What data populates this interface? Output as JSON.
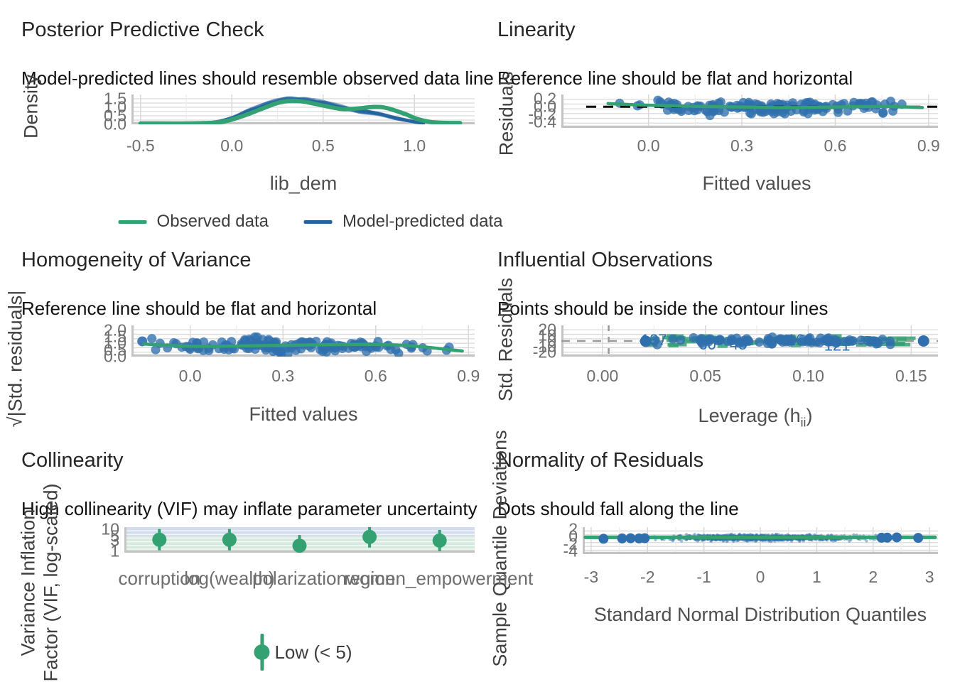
{
  "colors": {
    "green": "#33a172",
    "blue_line": "#24639f",
    "blue_point": "#2f6fad",
    "band_low": "#cfe6d9",
    "band_mod": "#ccd7e8",
    "grid": "#d9d9d9",
    "axis": "#c4c4c4",
    "gray_dash": "#9a9a9a",
    "ref_black": "#000000",
    "label_blue": "#2f6fad"
  },
  "chart_data": [
    {
      "id": "ppc",
      "type": "line",
      "title": "Posterior Predictive Check",
      "subtitle": "Model-predicted lines should resemble observed data line",
      "xlabel": "lib_dem",
      "ylabel": "Density",
      "xlim": [
        -0.55,
        1.33
      ],
      "ylim": [
        0,
        1.75
      ],
      "xticks": [
        {
          "v": -0.5,
          "l": "-0.5"
        },
        {
          "v": 0.0,
          "l": "0.0"
        },
        {
          "v": 0.5,
          "l": "0.5"
        },
        {
          "v": 1.0,
          "l": "1.0"
        }
      ],
      "yticks": [
        {
          "v": 1.5,
          "l": "1.5"
        },
        {
          "v": 1.0,
          "l": "1.0"
        },
        {
          "v": 0.5,
          "l": "0.5"
        },
        {
          "v": 0.0,
          "l": "0.0"
        }
      ],
      "legend": [
        {
          "label": "Observed data",
          "color": "green"
        },
        {
          "label": "Model-predicted data",
          "color": "blue_line"
        }
      ],
      "observed": [
        [
          -0.5,
          0.05
        ],
        [
          -0.4,
          0.05
        ],
        [
          -0.25,
          0.05
        ],
        [
          -0.15,
          0.07
        ],
        [
          -0.05,
          0.15
        ],
        [
          0.05,
          0.45
        ],
        [
          0.15,
          0.85
        ],
        [
          0.25,
          1.25
        ],
        [
          0.33,
          1.38
        ],
        [
          0.4,
          1.32
        ],
        [
          0.5,
          1.1
        ],
        [
          0.6,
          0.9
        ],
        [
          0.68,
          0.92
        ],
        [
          0.78,
          1.02
        ],
        [
          0.85,
          0.95
        ],
        [
          0.95,
          0.6
        ],
        [
          1.02,
          0.3
        ],
        [
          1.1,
          0.12
        ],
        [
          1.2,
          0.08
        ],
        [
          1.25,
          0.08
        ]
      ],
      "predicted_base": [
        [
          -0.2,
          0.02
        ],
        [
          -0.1,
          0.1
        ],
        [
          0,
          0.35
        ],
        [
          0.1,
          0.8
        ],
        [
          0.2,
          1.2
        ],
        [
          0.3,
          1.45
        ],
        [
          0.4,
          1.42
        ],
        [
          0.5,
          1.25
        ],
        [
          0.6,
          1.0
        ],
        [
          0.7,
          0.8
        ],
        [
          0.8,
          0.6
        ],
        [
          0.9,
          0.35
        ],
        [
          1.0,
          0.15
        ],
        [
          1.05,
          0.06
        ]
      ],
      "n_sim": 9,
      "seed": 3
    },
    {
      "id": "linearity",
      "type": "scatter",
      "title": "Linearity",
      "subtitle": "Reference line should be flat and horizontal",
      "xlabel": "Fitted values",
      "ylabel": "Residuals",
      "xlim": [
        -0.28,
        0.93
      ],
      "ylim": [
        -0.55,
        0.32
      ],
      "xticks": [
        {
          "v": 0.0,
          "l": "0.0"
        },
        {
          "v": 0.3,
          "l": "0.3"
        },
        {
          "v": 0.6,
          "l": "0.6"
        },
        {
          "v": 0.9,
          "l": "0.9"
        }
      ],
      "yticks": [
        {
          "v": 0.2,
          "l": "0.2"
        },
        {
          "v": 0.0,
          "l": "0.0"
        },
        {
          "v": -0.2,
          "l": "-0.2"
        },
        {
          "v": -0.4,
          "l": "-0.4"
        }
      ],
      "refline": 0,
      "smooth": [
        [
          -0.13,
          0.085
        ],
        [
          0,
          0.04
        ],
        [
          0.15,
          0.01
        ],
        [
          0.3,
          -0.005
        ],
        [
          0.45,
          -0.02
        ],
        [
          0.6,
          -0.005
        ],
        [
          0.75,
          0.01
        ],
        [
          0.88,
          -0.02
        ]
      ],
      "cloud": {
        "n": 150,
        "seed": 7,
        "xmin": -0.13,
        "xmax": 0.88,
        "ysd": 0.16,
        "ymin": -0.42,
        "ymax": 0.23,
        "ymean": -0.02
      }
    },
    {
      "id": "homogeneity",
      "type": "scatter",
      "title": "Homogeneity of Variance",
      "subtitle": "Reference line should be flat and horizontal",
      "xlabel": "Fitted values",
      "ylabel": "√|Std. residuals|",
      "xlim": [
        -0.19,
        0.92
      ],
      "ylim": [
        0,
        2.35
      ],
      "xticks": [
        {
          "v": 0.0,
          "l": "0.0"
        },
        {
          "v": 0.3,
          "l": "0.3"
        },
        {
          "v": 0.6,
          "l": "0.6"
        },
        {
          "v": 0.9,
          "l": "0.9"
        }
      ],
      "yticks": [
        {
          "v": 2.0,
          "l": "2.0"
        },
        {
          "v": 1.5,
          "l": "1.5"
        },
        {
          "v": 1.0,
          "l": "1.0"
        },
        {
          "v": 0.5,
          "l": "0.5"
        },
        {
          "v": 0.0,
          "l": "0.0"
        }
      ],
      "smooth": [
        [
          -0.15,
          0.95
        ],
        [
          0,
          0.78
        ],
        [
          0.15,
          0.8
        ],
        [
          0.3,
          0.85
        ],
        [
          0.45,
          0.9
        ],
        [
          0.6,
          0.92
        ],
        [
          0.72,
          0.8
        ],
        [
          0.8,
          0.62
        ],
        [
          0.88,
          0.42
        ]
      ],
      "cloud": {
        "n": 150,
        "seed": 11,
        "xmin": -0.15,
        "xmax": 0.88,
        "ysd": 0.5,
        "ymin": 0.1,
        "ymax": 1.95,
        "ymean": 0.82
      }
    },
    {
      "id": "influential",
      "type": "scatter",
      "title": "Influential Observations",
      "subtitle": "Points should be inside the contour lines",
      "xlabel_parts": {
        "pre": "Leverage (h",
        "sub": "ii",
        "post": ")"
      },
      "ylabel": "Std. Residuals",
      "xlim": [
        -0.02,
        0.163
      ],
      "ylim": [
        -27,
        27
      ],
      "xticks": [
        {
          "v": 0.0,
          "l": "0.00"
        },
        {
          "v": 0.05,
          "l": "0.05"
        },
        {
          "v": 0.1,
          "l": "0.10"
        },
        {
          "v": 0.15,
          "l": "0.15"
        }
      ],
      "yticks": [
        {
          "v": 20,
          "l": "20"
        },
        {
          "v": 10,
          "l": "10"
        },
        {
          "v": 0,
          "l": "0"
        },
        {
          "v": -10,
          "l": "-10"
        },
        {
          "v": -20,
          "l": "-20"
        }
      ],
      "hline": 0,
      "vline": 0.003,
      "point_labels": [
        {
          "text": "137",
          "x": 0.025,
          "y": 1
        },
        {
          "text": "60",
          "x": 0.051,
          "y": -6
        },
        {
          "text": "45",
          "x": 0.066,
          "y": -6
        },
        {
          "text": "166",
          "x": 0.096,
          "y": 1
        },
        {
          "text": "121",
          "x": 0.114,
          "y": -8
        }
      ],
      "cloud": {
        "n": 95,
        "seed": 19,
        "xmin": 0.022,
        "xmax": 0.157,
        "ysd": 6,
        "ymin": -10,
        "ymax": 10,
        "ymean": 0
      },
      "contours": {
        "n": 58,
        "seed": 23
      }
    },
    {
      "id": "collinearity",
      "type": "scatter",
      "title": "Collinearity",
      "subtitle": "High collinearity (VIF) may inflate parameter uncertainty",
      "ylabel_line1": "Variance Inflation",
      "ylabel_line2": "Factor (VIF, log-scaled)",
      "categories": [
        "corruption",
        "log(wealth)",
        "polarization",
        "region",
        "women_empowerment"
      ],
      "values": [
        3.4,
        3.4,
        1.8,
        4.6,
        3.1
      ],
      "ylim_log": [
        0.85,
        13
      ],
      "yticks": [
        {
          "v": 10,
          "l": "10"
        },
        {
          "v": 5,
          "l": "5"
        },
        {
          "v": 3,
          "l": "3"
        },
        {
          "v": 1,
          "l": "1"
        }
      ],
      "band_threshold": 5,
      "legend_label": "Low (< 5)"
    },
    {
      "id": "normality",
      "type": "scatter",
      "title": "Normality of Residuals",
      "subtitle": "Dots should fall along the line",
      "xlabel": "Standard Normal Distribution Quantiles",
      "ylabel": "Sample Quantile Deviations",
      "xlim": [
        -3.15,
        3.15
      ],
      "ylim": [
        -4.8,
        2.6
      ],
      "xticks": [
        {
          "v": -3,
          "l": "-3"
        },
        {
          "v": -2,
          "l": "-2"
        },
        {
          "v": -1,
          "l": "-1"
        },
        {
          "v": 0,
          "l": "0"
        },
        {
          "v": 1,
          "l": "1"
        },
        {
          "v": 2,
          "l": "2"
        },
        {
          "v": 3,
          "l": "3"
        }
      ],
      "yticks": [
        {
          "v": 2,
          "l": "2"
        },
        {
          "v": 0,
          "l": "0"
        },
        {
          "v": -2,
          "l": "-2"
        },
        {
          "v": -4,
          "l": "-4"
        }
      ],
      "line_y": -0.2,
      "outliers": [
        [
          -2.78,
          -0.6
        ],
        [
          -2.45,
          -0.5
        ],
        [
          -2.3,
          -0.45
        ],
        [
          -2.15,
          -0.5
        ],
        [
          -2.05,
          -0.45
        ],
        [
          2.15,
          -0.3
        ],
        [
          2.25,
          -0.28
        ],
        [
          2.42,
          -0.22
        ],
        [
          2.8,
          -0.35
        ]
      ],
      "cloud": {
        "n": 1200,
        "seed": 31
      }
    }
  ]
}
